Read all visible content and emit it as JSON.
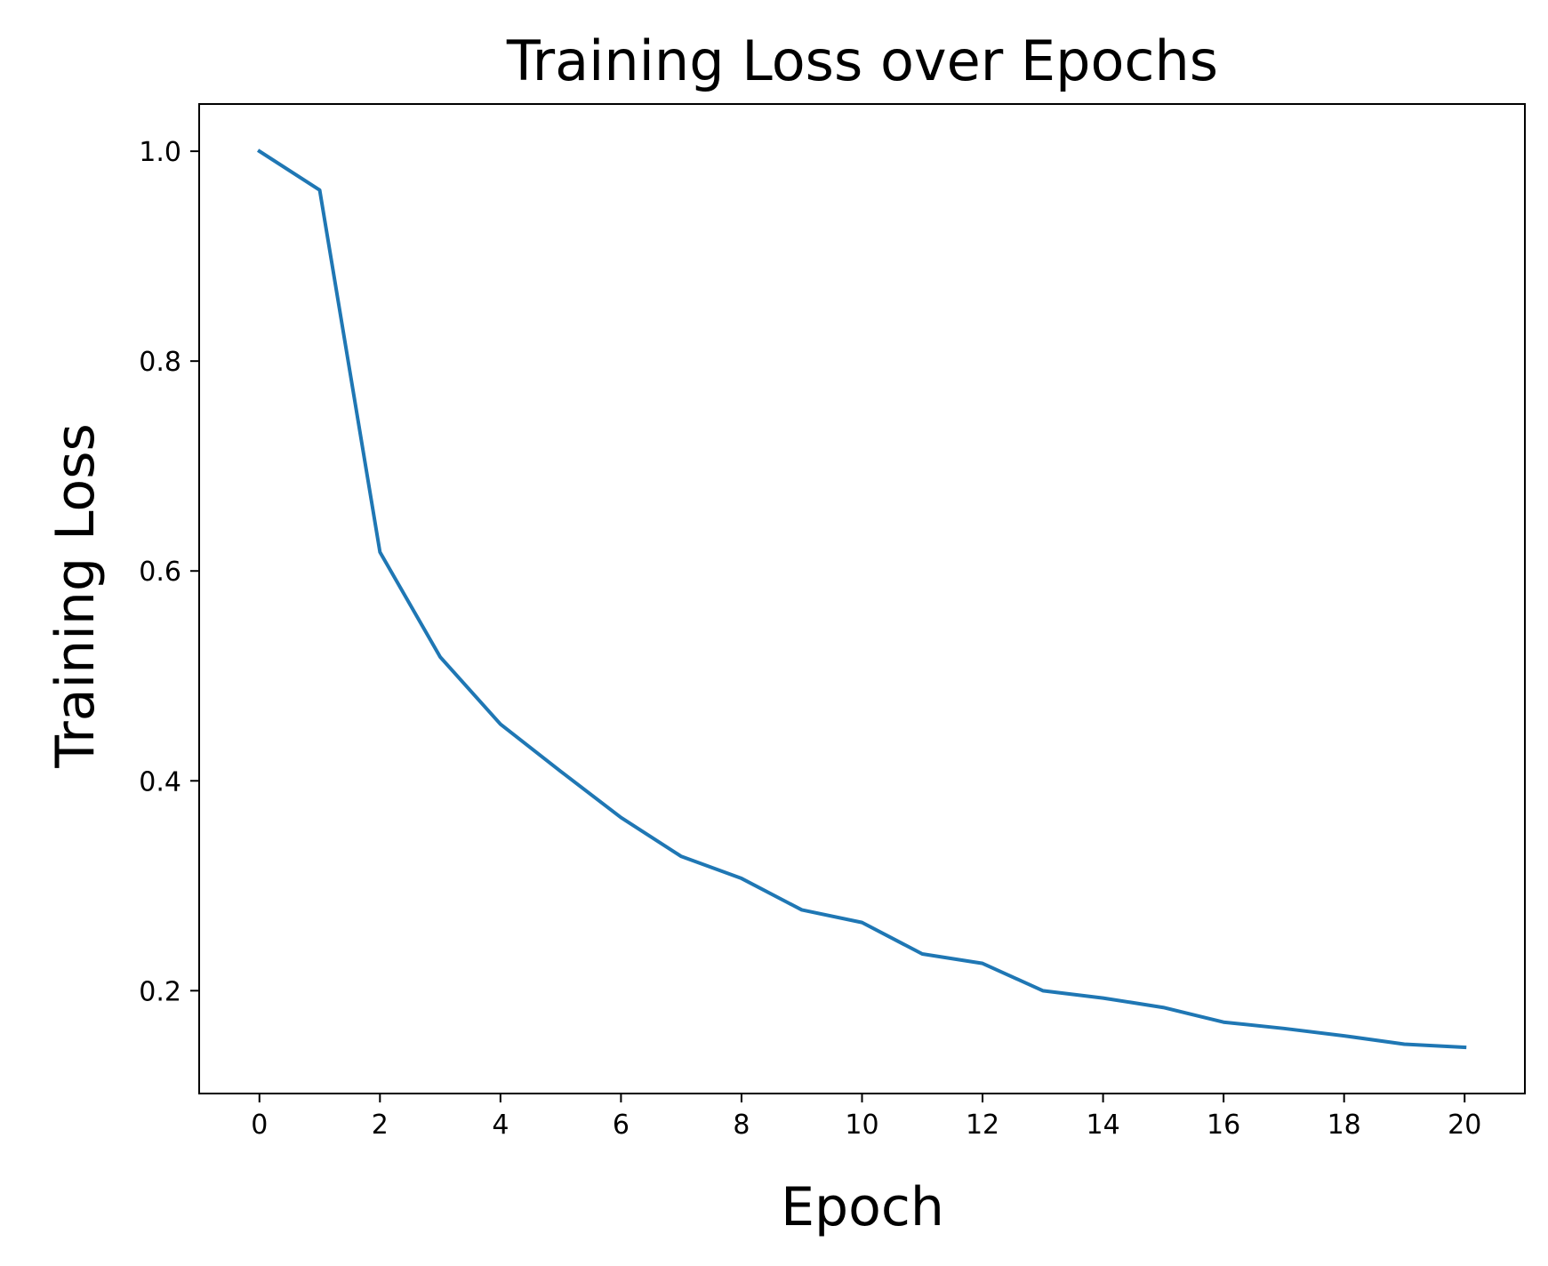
{
  "chart_data": {
    "type": "line",
    "title": "Training Loss over Epochs",
    "xlabel": "Epoch",
    "ylabel": "Training Loss",
    "xlim": [
      -1,
      21
    ],
    "ylim": [
      0.102,
      1.045
    ],
    "xticks": [
      0,
      2,
      4,
      6,
      8,
      10,
      12,
      14,
      16,
      18,
      20
    ],
    "xtick_labels": [
      "0",
      "2",
      "4",
      "6",
      "8",
      "10",
      "12",
      "14",
      "16",
      "18",
      "20"
    ],
    "yticks": [
      0.2,
      0.4,
      0.6,
      0.8,
      1.0
    ],
    "ytick_labels": [
      "0.2",
      "0.4",
      "0.6",
      "0.8",
      "1.0"
    ],
    "grid": false,
    "legend": "none",
    "series": [
      {
        "color": "#1f77b4",
        "x": [
          0,
          1,
          2,
          3,
          4,
          5,
          6,
          7,
          8,
          9,
          10,
          11,
          12,
          13,
          14,
          15,
          16,
          17,
          18,
          19,
          20
        ],
        "y": [
          1.0,
          0.963,
          0.618,
          0.518,
          0.454,
          0.409,
          0.365,
          0.328,
          0.307,
          0.277,
          0.265,
          0.235,
          0.226,
          0.2,
          0.193,
          0.184,
          0.17,
          0.164,
          0.157,
          0.149,
          0.146
        ]
      }
    ]
  }
}
